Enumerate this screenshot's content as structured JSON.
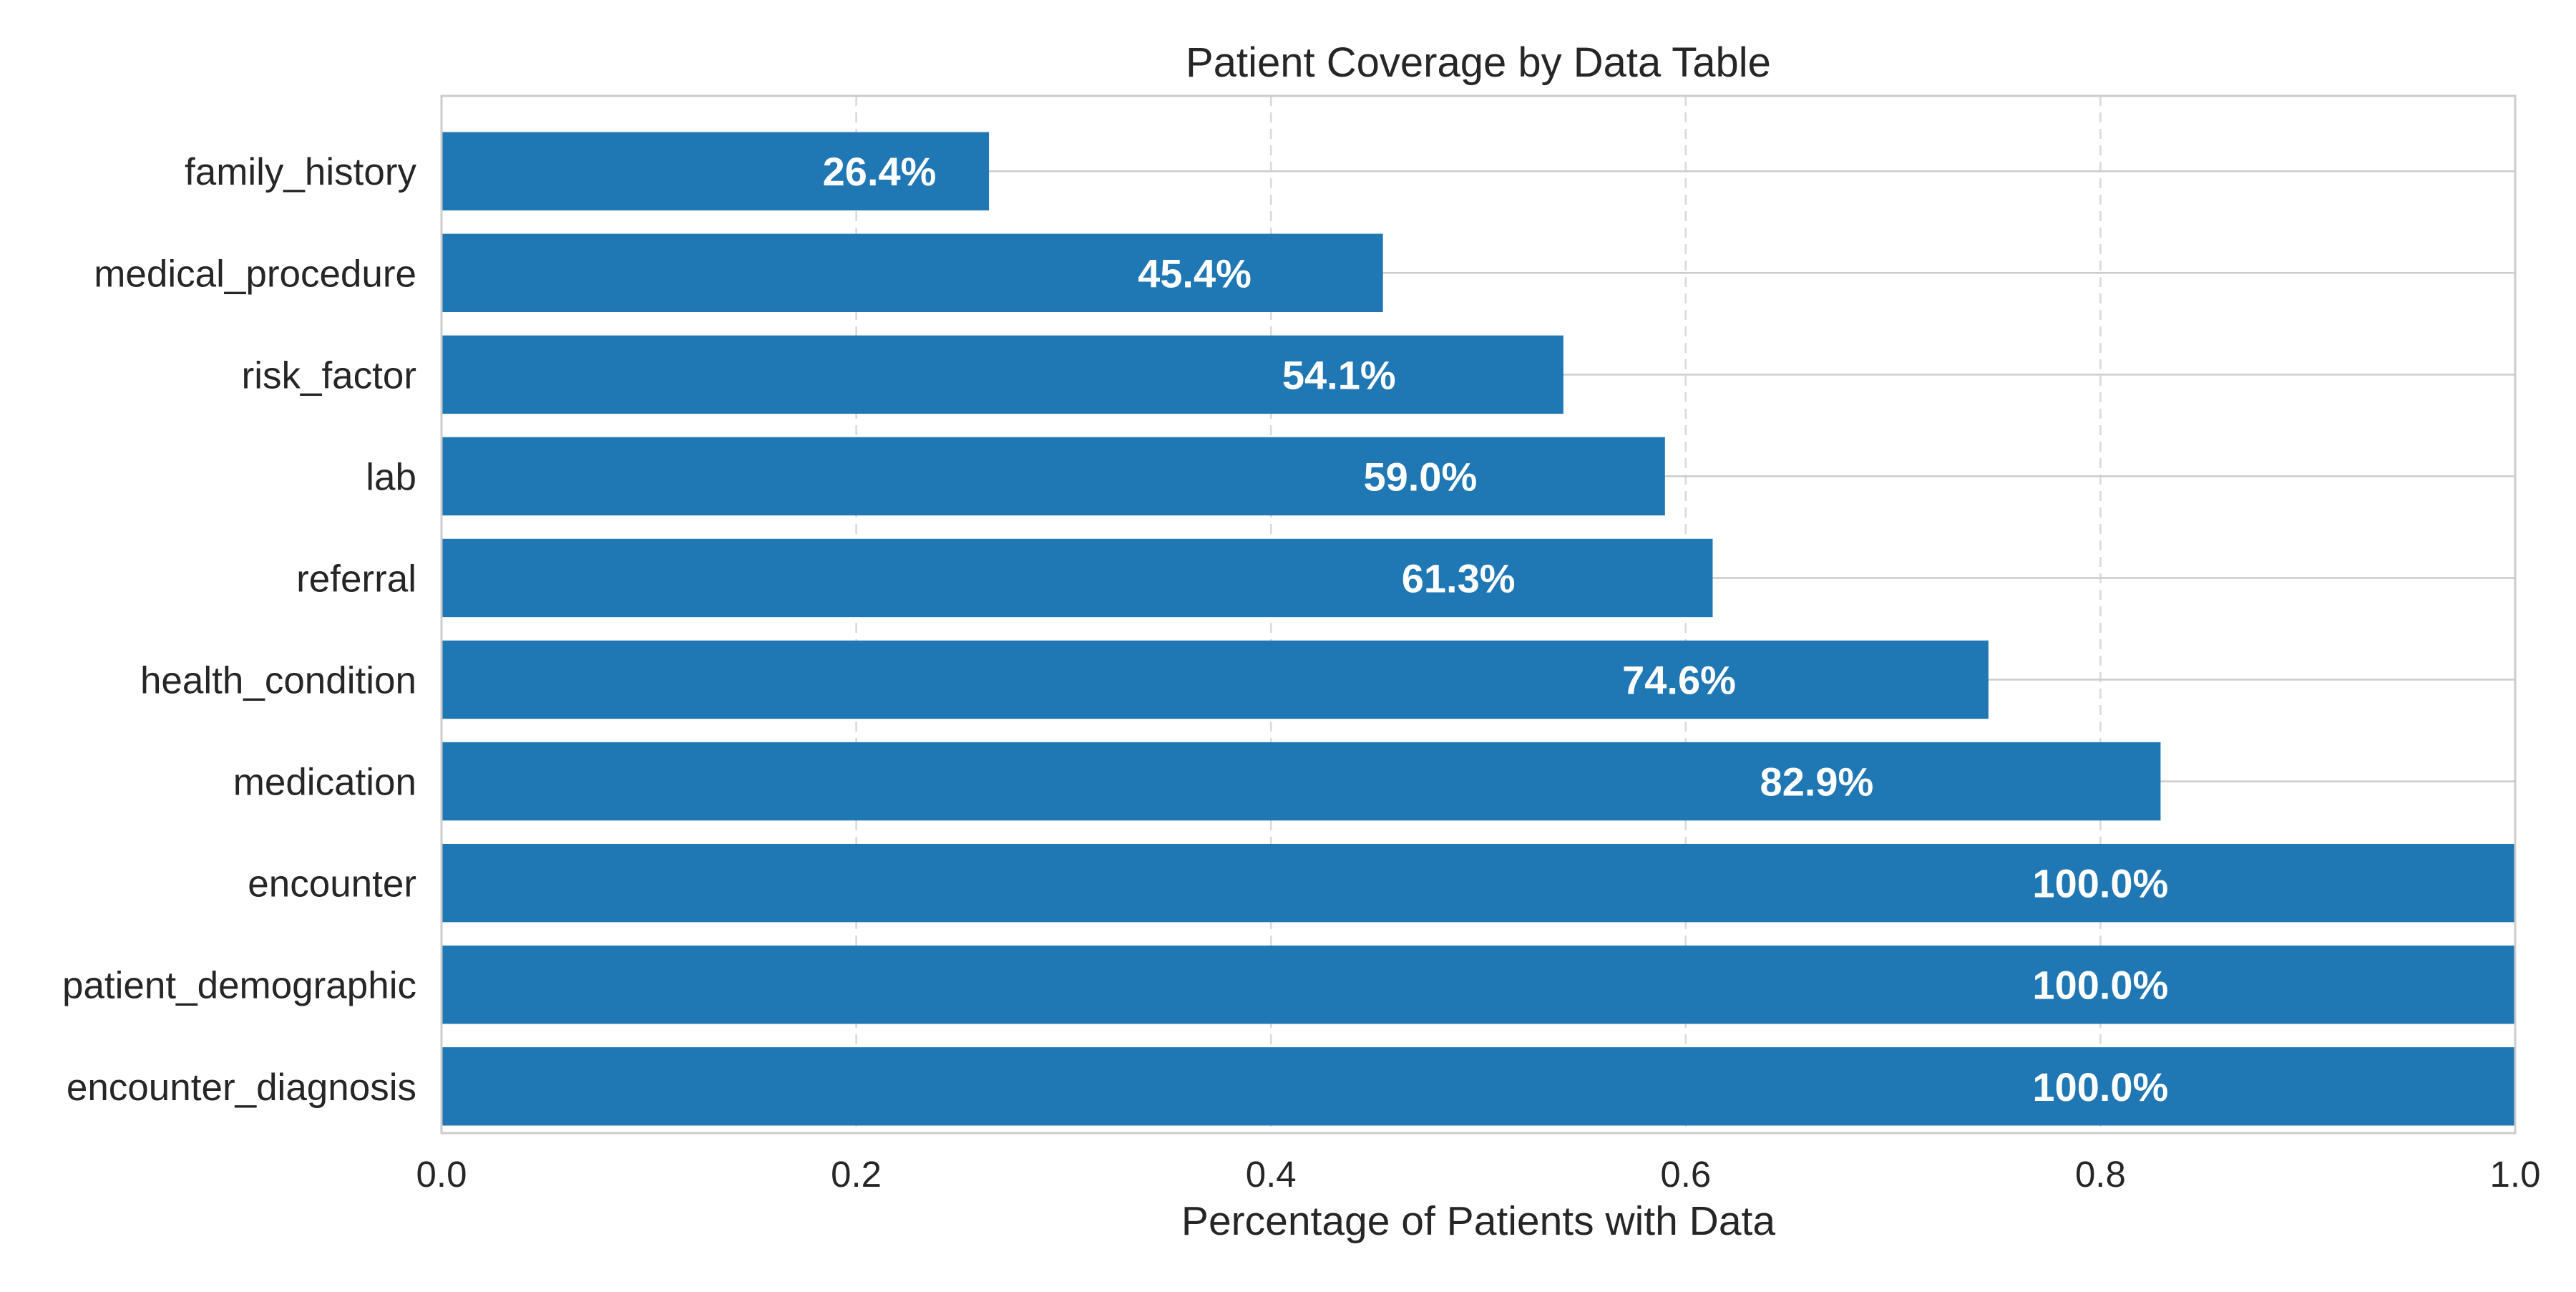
{
  "chart_data": {
    "type": "bar",
    "orientation": "horizontal",
    "title": "Patient Coverage by Data Table",
    "xlabel": "Percentage of Patients with Data",
    "ylabel": "",
    "xlim": [
      0,
      1.0
    ],
    "xticks": [
      0.0,
      0.2,
      0.4,
      0.6,
      0.8,
      1.0
    ],
    "xtick_labels": [
      "0.0",
      "0.2",
      "0.4",
      "0.6",
      "0.8",
      "1.0"
    ],
    "categories": [
      "family_history",
      "medical_procedure",
      "risk_factor",
      "lab",
      "referral",
      "health_condition",
      "medication",
      "encounter",
      "patient_demographic",
      "encounter_diagnosis"
    ],
    "values": [
      0.264,
      0.454,
      0.541,
      0.59,
      0.613,
      0.746,
      0.829,
      1.0,
      1.0,
      1.0
    ],
    "data_labels": [
      "26.4%",
      "45.4%",
      "54.1%",
      "59.0%",
      "61.3%",
      "74.6%",
      "82.9%",
      "100.0%",
      "100.0%",
      "100.0%"
    ],
    "grid": true,
    "bar_color": "#1f77b4",
    "label_color": "#ffffff",
    "grid_color": "#d9d9d9",
    "axis_color": "#cccccc",
    "text_color": "#262626"
  }
}
